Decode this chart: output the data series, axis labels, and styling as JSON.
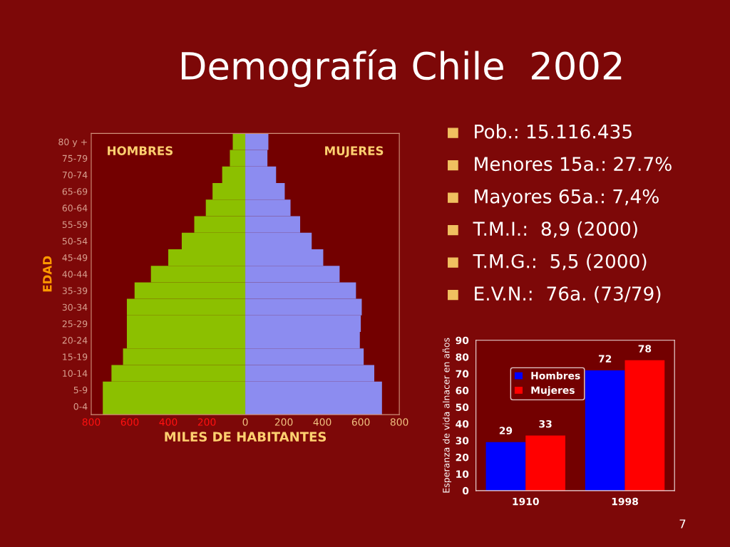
{
  "chart_data": [
    {
      "type": "other",
      "title": "Demografía Chile  2002",
      "annotations": [
        "Pob.: 15.116.435",
        "Menores 15a.: 27.7%",
        "Mayores 65a.: 7,4%",
        "T.M.I.:  8,9 (2000)",
        "T.M.G.:  5,5 (2000)",
        "E.V.N.:  76a. (73/79)",
        "7"
      ]
    },
    {
      "type": "bar",
      "orientation": "horizontal",
      "stacked": true,
      "xlabel": "MILES DE HABITANTES",
      "ylabel": "EDAD",
      "annotations": [
        "HOMBRES",
        "MUJERES"
      ],
      "categories": [
        "80 y +",
        "75-79",
        "70-74",
        "65-69",
        "60-64",
        "55-59",
        "50-54",
        "45-49",
        "40-44",
        "35-39",
        "30-34",
        "25-29",
        "20-24",
        "15-19",
        "10-14",
        "5-9",
        "0-4"
      ],
      "series": [
        {
          "color": "#8cc000",
          "values": [
            -65,
            -80,
            -120,
            -170,
            -205,
            -265,
            -330,
            -400,
            -490,
            -575,
            -615,
            -615,
            -615,
            -635,
            -695,
            -740,
            -740
          ]
        },
        {
          "color": "#8c8cf0",
          "values": [
            120,
            115,
            160,
            205,
            235,
            285,
            345,
            405,
            490,
            575,
            605,
            600,
            595,
            615,
            670,
            710,
            710
          ]
        }
      ],
      "xlim": [
        -800,
        800
      ],
      "xticks": [
        {
          "value": -800,
          "label": "800"
        },
        {
          "value": -600,
          "label": "600"
        },
        {
          "value": -400,
          "label": "400"
        },
        {
          "value": -200,
          "label": "200"
        },
        0,
        200,
        400,
        600,
        800
      ],
      "grid": false
    },
    {
      "type": "bar",
      "ylabel": "Esperanza de vida alnacer en años",
      "categories": [
        "1910",
        "1998"
      ],
      "series": [
        {
          "name": "Hombres",
          "color": "#0000ff",
          "values": [
            29,
            72
          ]
        },
        {
          "name": "Mujeres",
          "color": "#ff0000",
          "values": [
            33,
            78
          ]
        }
      ],
      "ylim": [
        0,
        90
      ],
      "yticks": [
        0,
        10,
        20,
        30,
        40,
        50,
        60,
        70,
        80,
        90
      ],
      "data_labels": true,
      "grid": false,
      "legend": "top left"
    }
  ]
}
